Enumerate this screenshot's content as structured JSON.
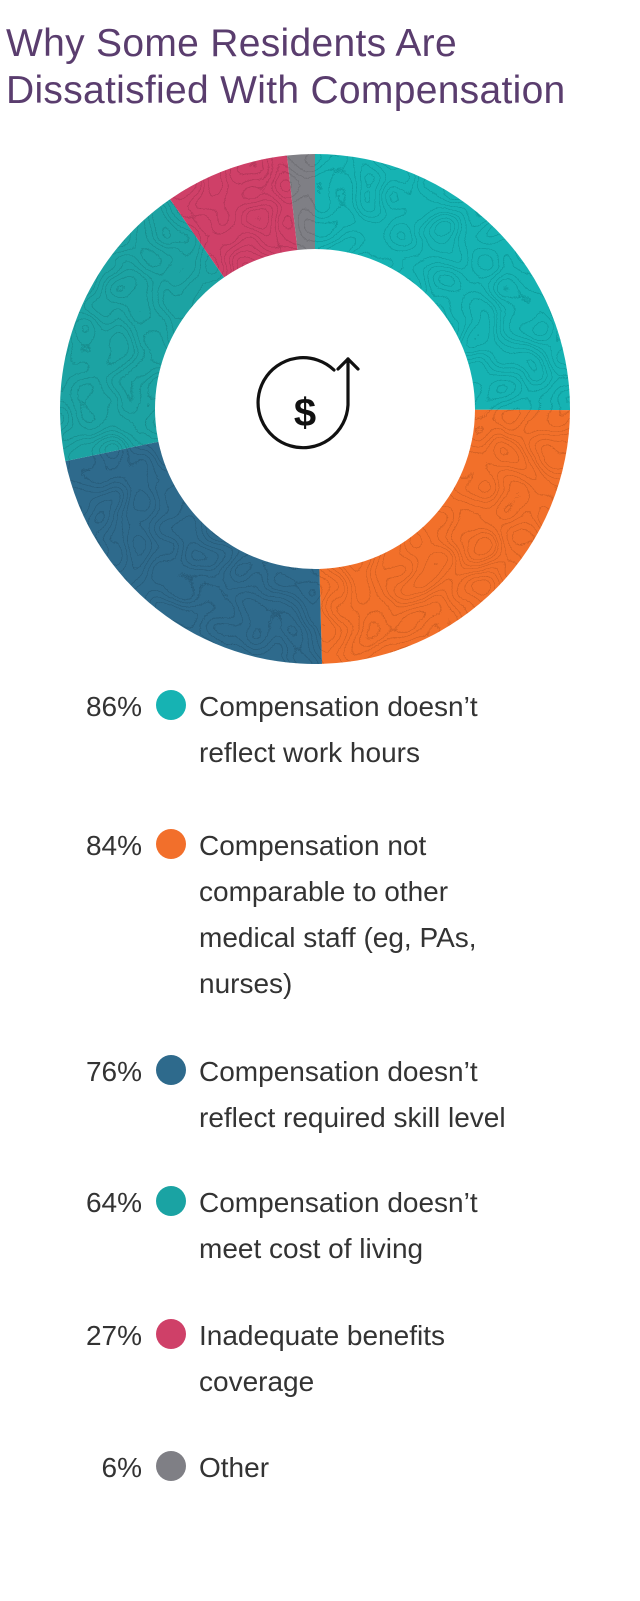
{
  "title": {
    "line1": "Why Some Residents Are",
    "line2": "Dissatisfied With Compensation"
  },
  "colors": {
    "teal": "#16b3b3",
    "orange": "#f26f2b",
    "navy": "#2e6a8c",
    "teal2": "#1aa3a3",
    "crimson": "#cf4068",
    "gray": "#7f7f85",
    "title": "#5a3d6e"
  },
  "center_icon": "dollar-up-arrow-icon",
  "chart_data": {
    "type": "pie",
    "donut": true,
    "title": "Why Some Residents Are Dissatisfied With Compensation",
    "categories": [
      "Compensation doesn’t reflect work hours",
      "Compensation not comparable to other medical staff (eg, PAs, nurses)",
      "Compensation doesn’t reflect required skill level",
      "Compensation doesn’t meet cost of living",
      "Inadequate benefits coverage",
      "Other"
    ],
    "values": [
      86,
      84,
      76,
      64,
      27,
      6
    ],
    "value_labels": [
      "86%",
      "84%",
      "76%",
      "64%",
      "27%",
      "6%"
    ],
    "colors": [
      "#16b3b3",
      "#f26f2b",
      "#2e6a8c",
      "#1aa3a3",
      "#cf4068",
      "#7f7f85"
    ],
    "legend_placement": "bottom"
  },
  "legend": [
    {
      "value": "86%",
      "lines": [
        "Compensation doesn’t",
        "reflect work hours"
      ]
    },
    {
      "value": "84%",
      "lines": [
        "Compensation not",
        "comparable to other",
        "medical staff (eg, PAs,",
        "nurses)"
      ]
    },
    {
      "value": "76%",
      "lines": [
        "Compensation doesn’t",
        "reflect required skill level"
      ]
    },
    {
      "value": "64%",
      "lines": [
        "Compensation doesn’t",
        "meet cost of living"
      ]
    },
    {
      "value": "27%",
      "lines": [
        "Inadequate benefits",
        "coverage"
      ]
    },
    {
      "value": "6%",
      "lines": [
        "Other"
      ]
    }
  ]
}
